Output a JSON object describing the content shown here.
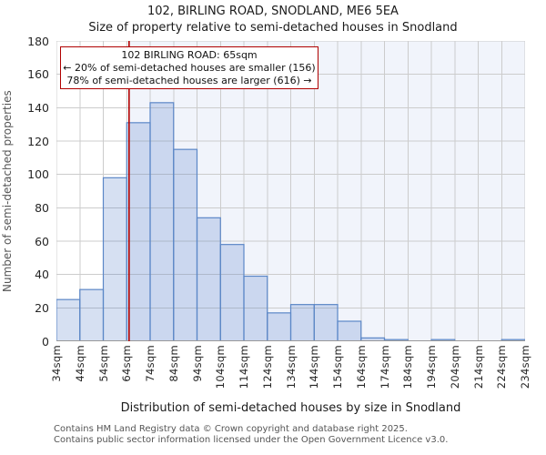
{
  "header": {
    "title": "102, BIRLING ROAD, SNODLAND, ME6 5EA",
    "subtitle": "Size of property relative to semi-detached houses in Snodland"
  },
  "annotation": {
    "line1": "102 BIRLING ROAD: 65sqm",
    "line2": "← 20% of semi-detached houses are smaller (156)",
    "line3": "78% of semi-detached houses are larger (616) →"
  },
  "chart_data": {
    "type": "bar",
    "title": "102, BIRLING ROAD, SNODLAND, ME6 5EA",
    "subtitle": "Size of property relative to semi-detached houses in Snodland",
    "xlabel": "Distribution of semi-detached houses by size in Snodland",
    "ylabel": "Number of semi-detached properties",
    "bin_edges": [
      34,
      44,
      54,
      64,
      74,
      84,
      94,
      104,
      114,
      124,
      134,
      144,
      154,
      164,
      174,
      184,
      194,
      204,
      214,
      224,
      234
    ],
    "x_tick_labels": [
      "34sqm",
      "44sqm",
      "54sqm",
      "64sqm",
      "74sqm",
      "84sqm",
      "94sqm",
      "104sqm",
      "114sqm",
      "124sqm",
      "134sqm",
      "144sqm",
      "154sqm",
      "164sqm",
      "174sqm",
      "184sqm",
      "194sqm",
      "204sqm",
      "214sqm",
      "224sqm",
      "234sqm"
    ],
    "values": [
      25,
      31,
      98,
      131,
      143,
      115,
      74,
      58,
      39,
      17,
      22,
      22,
      12,
      2,
      1,
      0,
      1,
      0,
      0,
      1
    ],
    "ylim": [
      0,
      180
    ],
    "yticks": [
      0,
      20,
      40,
      60,
      80,
      100,
      120,
      140,
      160,
      180
    ],
    "grid": true,
    "legend": "none",
    "marker": {
      "value": 65,
      "label": "102 BIRLING ROAD: 65sqm",
      "color": "#b00000"
    },
    "colors": {
      "bar_fill": "rgba(68,114,196,0.22)",
      "bar_border": "#5b87c7",
      "grid": "#cccccc",
      "axis": "#999999",
      "bg_right_of_marker": "#f1f4fb",
      "annotation_border": "#b00000"
    }
  },
  "footer": {
    "line1": "Contains HM Land Registry data © Crown copyright and database right 2025.",
    "line2": "Contains public sector information licensed under the Open Government Licence v3.0."
  }
}
